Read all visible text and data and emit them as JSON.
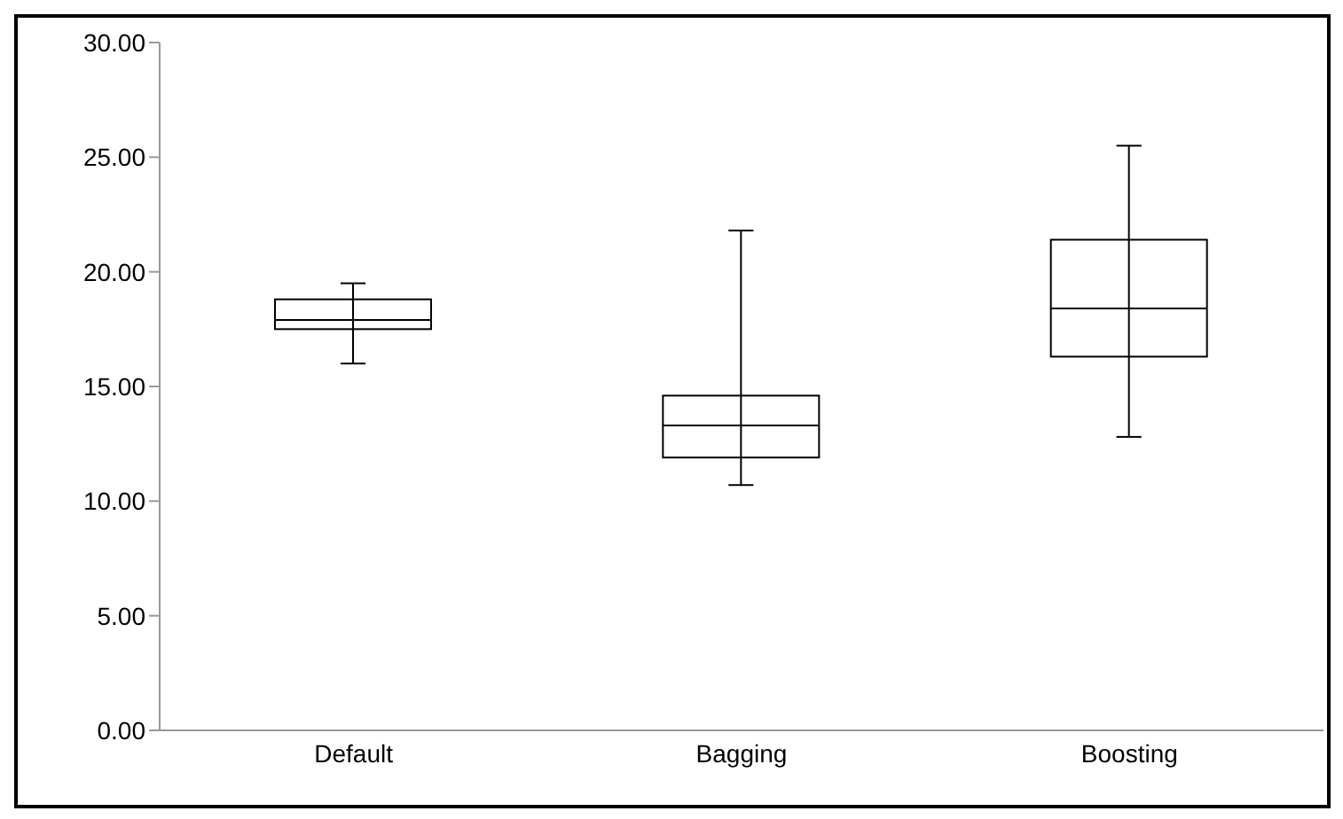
{
  "chart_data": {
    "type": "box",
    "categories": [
      "Default",
      "Bagging",
      "Boosting"
    ],
    "boxes": [
      {
        "low": 16.0,
        "q1": 17.5,
        "median": 17.9,
        "q3": 18.8,
        "high": 19.5
      },
      {
        "low": 10.7,
        "q1": 11.9,
        "median": 13.3,
        "q3": 14.6,
        "high": 21.8
      },
      {
        "low": 12.8,
        "q1": 16.3,
        "median": 18.4,
        "q3": 21.4,
        "high": 25.5
      }
    ],
    "ylim": [
      0,
      30
    ],
    "yticks": [
      {
        "value": 0,
        "label": "0.00"
      },
      {
        "value": 5,
        "label": "5.00"
      },
      {
        "value": 10,
        "label": "10.00"
      },
      {
        "value": 15,
        "label": "15.00"
      },
      {
        "value": 20,
        "label": "20.00"
      },
      {
        "value": 25,
        "label": "25.00"
      },
      {
        "value": 30,
        "label": "30.00"
      }
    ],
    "grid": false,
    "legend": false
  }
}
